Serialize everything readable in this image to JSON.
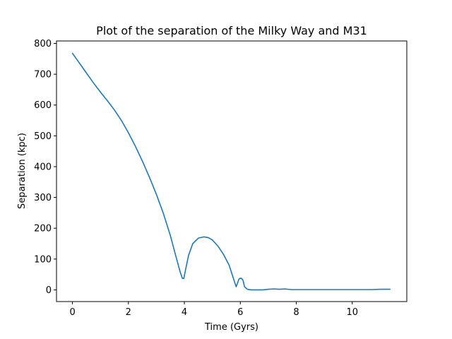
{
  "chart_data": {
    "type": "line",
    "title": "Plot of the separation of the Milky Way and M31",
    "xlabel": "Time (Gyrs)",
    "ylabel": "Separation (kpc)",
    "xlim": [
      -0.57,
      11.95
    ],
    "ylim": [
      -38,
      808
    ],
    "xticks": [
      0,
      2,
      4,
      6,
      8,
      10
    ],
    "yticks": [
      0,
      100,
      200,
      300,
      400,
      500,
      600,
      700,
      800
    ],
    "grid": false,
    "legend": "none",
    "series": [
      {
        "color": "#1f77b4",
        "x": [
          0.0,
          0.25,
          0.5,
          0.75,
          1.0,
          1.25,
          1.5,
          1.75,
          2.0,
          2.25,
          2.5,
          2.75,
          3.0,
          3.25,
          3.5,
          3.7,
          3.85,
          3.93,
          3.98,
          4.03,
          4.15,
          4.3,
          4.5,
          4.7,
          4.85,
          5.0,
          5.2,
          5.4,
          5.6,
          5.75,
          5.85,
          5.9,
          5.95,
          6.0,
          6.05,
          6.1,
          6.15,
          6.2,
          6.25,
          6.4,
          6.6,
          6.8,
          7.0,
          7.2,
          7.4,
          7.6,
          7.8,
          8.0,
          8.3,
          8.6,
          8.9,
          9.2,
          9.5,
          9.8,
          10.1,
          10.4,
          10.7,
          11.0,
          11.35
        ],
        "y": [
          768,
          736,
          704,
          672,
          642,
          614,
          584,
          550,
          510,
          466,
          418,
          366,
          310,
          248,
          176,
          108,
          58,
          37,
          37,
          60,
          112,
          150,
          168,
          172,
          170,
          162,
          142,
          115,
          80,
          38,
          10,
          22,
          35,
          38,
          37,
          30,
          10,
          6,
          2,
          0,
          0,
          0,
          2,
          3,
          2,
          3,
          1,
          1,
          1,
          1,
          1,
          1,
          1,
          1,
          1,
          1,
          1,
          2,
          2
        ]
      }
    ]
  }
}
